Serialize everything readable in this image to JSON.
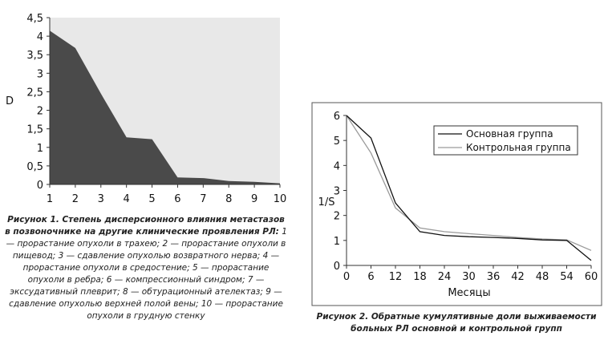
{
  "chart_data": [
    {
      "type": "area",
      "ylabel": "D",
      "xlabel": "",
      "categories": [
        "1",
        "2",
        "3",
        "4",
        "5",
        "6",
        "7",
        "8",
        "9",
        "10"
      ],
      "values": [
        4.15,
        3.68,
        2.45,
        1.27,
        1.22,
        0.19,
        0.17,
        0.09,
        0.07,
        0.03
      ],
      "ylim": [
        0,
        4.5
      ],
      "yticks": [
        "0",
        "0,5",
        "1",
        "1,5",
        "2",
        "2,5",
        "3",
        "3,5",
        "4",
        "4,5"
      ],
      "ytick_values": [
        0,
        0.5,
        1,
        1.5,
        2,
        2.5,
        3,
        3.5,
        4,
        4.5
      ],
      "grid": false,
      "colors": {
        "fill": "#4a4a4a",
        "background": "#e8e8e8"
      },
      "caption_lead": "Рисунок 1. Степень дисперсионного влияния метастазов в позвоночнике на другие клинические проявления РЛ:",
      "caption_body": " 1 — прорастание опухоли в трахею; 2 — прорастание опухоли в пищевод; 3 — сдавление опухолью возвратного нерва; 4 — прорастание опухоли в средостение; 5 — прорастание опухоли в ребра; 6 — компрессионный синдром; 7 — экссудативный плеврит; 8 — обтурационный ателектаз; 9 — сдавление опухолью верхней полой вены; 10 — прорастание опухоли в грудную стенку"
    },
    {
      "type": "line",
      "xlabel": "Месяцы",
      "ylabel": "1/S",
      "x": [
        0,
        6,
        12,
        18,
        24,
        30,
        36,
        42,
        48,
        54,
        60
      ],
      "xticks": [
        "0",
        "6",
        "12",
        "18",
        "24",
        "30",
        "36",
        "42",
        "48",
        "54",
        "60"
      ],
      "xlim": [
        0,
        60
      ],
      "ylim": [
        0,
        6
      ],
      "yticks": [
        "0",
        "1",
        "2",
        "3",
        "4",
        "5",
        "6"
      ],
      "ytick_values": [
        0,
        1,
        2,
        3,
        4,
        5,
        6
      ],
      "grid": false,
      "legend_position": "top-right",
      "series": [
        {
          "name": "Основная группа",
          "color": "#111111",
          "values": [
            6.0,
            5.1,
            2.5,
            1.35,
            1.2,
            1.15,
            1.12,
            1.08,
            1.02,
            1.0,
            0.2
          ]
        },
        {
          "name": "Контрольная группа",
          "color": "#9a9a9a",
          "values": [
            6.0,
            4.5,
            2.3,
            1.5,
            1.35,
            1.27,
            1.2,
            1.12,
            1.06,
            1.02,
            0.6
          ]
        }
      ],
      "caption": "Рисунок 2. Обратные кумулятивные доли выживаемости больных РЛ основной и контрольной групп"
    }
  ]
}
